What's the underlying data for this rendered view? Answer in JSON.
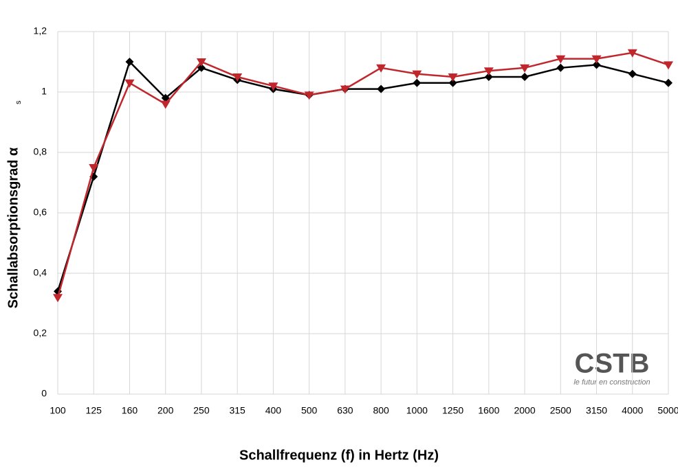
{
  "chart_data": {
    "type": "line",
    "xlabel": "Schallfrequenz (f) in Hertz (Hz)",
    "ylabel": "Schallabsorptionsgrad α",
    "ylabel_sub": "s",
    "categories": [
      "100",
      "125",
      "160",
      "200",
      "250",
      "315",
      "400",
      "500",
      "630",
      "800",
      "1000",
      "1250",
      "1600",
      "2000",
      "2500",
      "3150",
      "4000",
      "5000"
    ],
    "series": [
      {
        "color": "#000000",
        "marker": "diamond",
        "values": [
          0.34,
          0.72,
          1.1,
          0.98,
          1.08,
          1.04,
          1.01,
          0.99,
          1.01,
          1.01,
          1.03,
          1.03,
          1.05,
          1.05,
          1.08,
          1.09,
          1.06,
          1.03
        ]
      },
      {
        "color": "#c0272d",
        "marker": "triangle-down",
        "values": [
          0.32,
          0.75,
          1.03,
          0.96,
          1.1,
          1.05,
          1.02,
          0.99,
          1.01,
          1.08,
          1.06,
          1.05,
          1.07,
          1.08,
          1.11,
          1.11,
          1.13,
          1.09
        ]
      }
    ],
    "ylim": [
      0,
      1.2
    ],
    "yticks": [
      0,
      {
        "value": 0.2,
        "label": "0,2"
      },
      {
        "value": 0.4,
        "label": "0,4"
      },
      {
        "value": 0.6,
        "label": "0,6"
      },
      {
        "value": 0.8,
        "label": "0,8"
      },
      1,
      {
        "value": 1.2,
        "label": "1,2"
      }
    ],
    "grid": true,
    "logo": {
      "title": "CSTB",
      "tagline": "le futur en construction"
    }
  }
}
